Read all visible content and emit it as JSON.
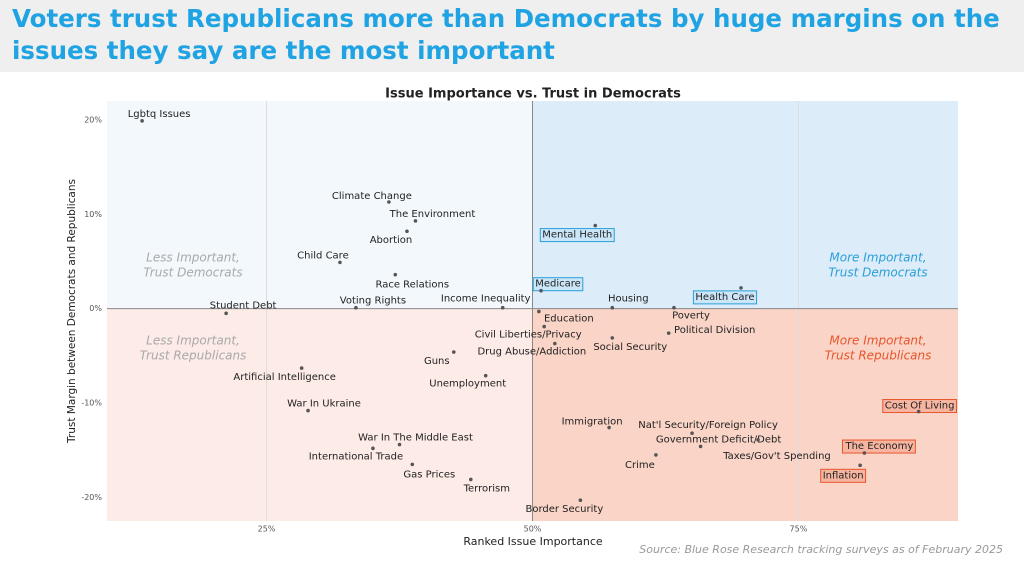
{
  "header": {
    "title_lines": [
      "Voters trust Republicans more than Democrats by huge margins on the",
      "issues they say are the most important"
    ]
  },
  "chart_data": {
    "type": "scatter",
    "title": "Issue Importance vs. Trust in Democrats",
    "x_label": "Ranked Issue Importance",
    "y_label": "Trust Margin between Democrats and Republicans",
    "source": "Source: Blue Rose Research tracking surveys as of February 2025",
    "xlim": [
      10,
      90
    ],
    "ylim": [
      -22.5,
      22
    ],
    "xticks": [
      {
        "value": 25,
        "label": "25%"
      },
      {
        "value": 50,
        "label": "50%"
      },
      {
        "value": 75,
        "label": "75%"
      }
    ],
    "yticks": [
      {
        "value": 20,
        "label": "20%"
      },
      {
        "value": 10,
        "label": "10%"
      },
      {
        "value": 0,
        "label": "0%"
      },
      {
        "value": -10,
        "label": "-10%"
      },
      {
        "value": -20,
        "label": "-20%"
      }
    ],
    "grid": true,
    "quadrant_labels": [
      {
        "lines": [
          "Less Important,",
          "Trust Democrats"
        ],
        "color": "#a9a9a9"
      },
      {
        "lines": [
          "More Important,",
          "Trust Democrats"
        ],
        "color": "#2a9fd8"
      },
      {
        "lines": [
          "Less Important,",
          "Trust Republicans"
        ],
        "color": "#a9a9a9"
      },
      {
        "lines": [
          "More Important,",
          "Trust Republicans"
        ],
        "color": "#e8562c"
      }
    ],
    "points": [
      {
        "label": "Lgbtq Issues",
        "x": 13.3,
        "y": 19.9
      },
      {
        "label": "Climate Change",
        "x": 36.5,
        "y": 11.3
      },
      {
        "label": "The Environment",
        "x": 39.0,
        "y": 9.3
      },
      {
        "label": "Abortion",
        "x": 38.2,
        "y": 8.2
      },
      {
        "label": "Child Care",
        "x": 31.9,
        "y": 4.9
      },
      {
        "label": "Race Relations",
        "x": 37.1,
        "y": 3.6
      },
      {
        "label": "Student Debt",
        "x": 21.2,
        "y": -0.5
      },
      {
        "label": "Voting Rights",
        "x": 33.4,
        "y": 0.1
      },
      {
        "label": "Income Inequality",
        "x": 47.2,
        "y": 0.1
      },
      {
        "label": "Mental Health",
        "x": 55.9,
        "y": 8.8
      },
      {
        "label": "Medicare",
        "x": 50.8,
        "y": 1.9
      },
      {
        "label": "Housing",
        "x": 57.5,
        "y": 0.1
      },
      {
        "label": "Health Care",
        "x": 69.6,
        "y": 2.2
      },
      {
        "label": "Poverty",
        "x": 63.3,
        "y": 0.1
      },
      {
        "label": "Education",
        "x": 50.6,
        "y": -0.3
      },
      {
        "label": "Civil Liberties/Privacy",
        "x": 51.1,
        "y": -1.9
      },
      {
        "label": "Political Division",
        "x": 62.8,
        "y": -2.6
      },
      {
        "label": "Social Security",
        "x": 57.5,
        "y": -3.1
      },
      {
        "label": "Drug Abuse/Addiction",
        "x": 52.1,
        "y": -3.7
      },
      {
        "label": "Guns",
        "x": 42.6,
        "y": -4.6
      },
      {
        "label": "Artificial Intelligence",
        "x": 28.3,
        "y": -6.3
      },
      {
        "label": "Unemployment",
        "x": 45.6,
        "y": -7.1
      },
      {
        "label": "War In Ukraine",
        "x": 28.9,
        "y": -10.8
      },
      {
        "label": "Cost Of Living",
        "x": 86.3,
        "y": -10.9
      },
      {
        "label": "Immigration",
        "x": 57.2,
        "y": -12.6
      },
      {
        "label": "Nat'l Security/Foreign Policy",
        "x": 65.0,
        "y": -13.2
      },
      {
        "label": "Government Deficit/Debt",
        "x": 65.8,
        "y": -14.6
      },
      {
        "label": "War In The Middle East",
        "x": 37.5,
        "y": -14.4
      },
      {
        "label": "International Trade",
        "x": 35.0,
        "y": -14.8
      },
      {
        "label": "Taxes/Gov't Spending",
        "x": 71.2,
        "y": -13.9
      },
      {
        "label": "The Economy",
        "x": 81.2,
        "y": -15.3
      },
      {
        "label": "Crime",
        "x": 61.6,
        "y": -15.5
      },
      {
        "label": "Gas Prices",
        "x": 38.7,
        "y": -16.5
      },
      {
        "label": "Inflation",
        "x": 80.8,
        "y": -16.6
      },
      {
        "label": "Terrorism",
        "x": 44.2,
        "y": -18.1
      },
      {
        "label": "Border Security",
        "x": 54.5,
        "y": -20.3
      }
    ]
  }
}
